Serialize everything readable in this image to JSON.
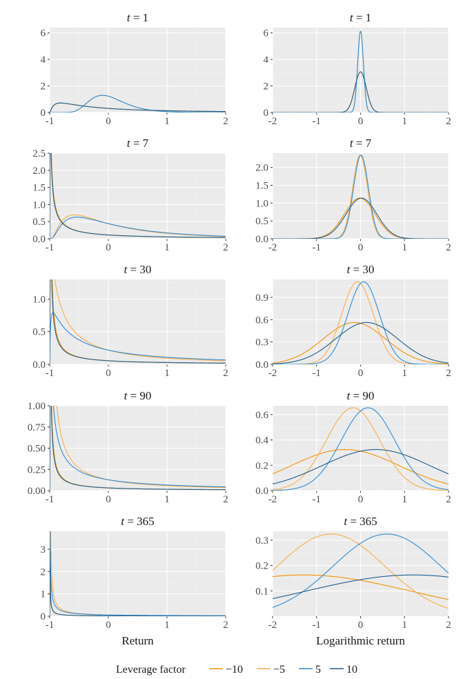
{
  "legend": {
    "title": "Leverage factor",
    "entries": [
      {
        "label": "−10",
        "color": "#f39200"
      },
      {
        "label": "−5",
        "color": "#f9ad45"
      },
      {
        "label": "5",
        "color": "#2b8cd6"
      },
      {
        "label": "10",
        "color": "#1d5c8c"
      }
    ]
  },
  "chart_data": [
    {
      "type": "line",
      "title": "t = 1",
      "t": "1",
      "xlabel": "",
      "xlim": [
        -1,
        2
      ],
      "ylim": [
        0,
        6.4
      ],
      "xticks": [
        -1,
        0,
        1,
        2
      ],
      "yticks": [
        0,
        2,
        4,
        6
      ],
      "ytick_labels": [
        "0",
        "2",
        "4",
        "6"
      ],
      "series": [
        {
          "name": "−10",
          "color": "#f39200",
          "kind": "lognormal",
          "L": -10,
          "mu": 0,
          "sigma": 0.13
        },
        {
          "name": "−5",
          "color": "#f9ad45",
          "kind": "lognormal",
          "L": -5,
          "mu": 0,
          "sigma": 0.065
        },
        {
          "name": "5",
          "color": "#2b8cd6",
          "kind": "lognormal",
          "L": 5,
          "mu": 0,
          "sigma": 0.065
        },
        {
          "name": "10",
          "color": "#1d5c8c",
          "kind": "lognormal",
          "L": 10,
          "mu": 0,
          "sigma": 0.13
        }
      ]
    },
    {
      "type": "line",
      "title": "t = 1",
      "t": "1",
      "xlabel": "",
      "xlim": [
        -2,
        2
      ],
      "ylim": [
        0,
        6.4
      ],
      "xticks": [
        -2,
        -1,
        0,
        1,
        2
      ],
      "yticks": [
        0,
        2,
        4,
        6
      ],
      "ytick_labels": [
        "0",
        "2",
        "4",
        "6"
      ],
      "series": [
        {
          "name": "−10",
          "color": "#f39200",
          "kind": "normal",
          "mu": 0,
          "sigma": 0.13
        },
        {
          "name": "−5",
          "color": "#f9ad45",
          "kind": "normal",
          "mu": 0,
          "sigma": 0.065
        },
        {
          "name": "5",
          "color": "#2b8cd6",
          "kind": "normal",
          "mu": 0,
          "sigma": 0.065
        },
        {
          "name": "10",
          "color": "#1d5c8c",
          "kind": "normal",
          "mu": 0,
          "sigma": 0.13
        }
      ]
    },
    {
      "type": "line",
      "title": "t = 7",
      "t": "7",
      "xlabel": "",
      "xlim": [
        -1,
        2
      ],
      "ylim": [
        0,
        2.5
      ],
      "xticks": [
        -1,
        0,
        1,
        2
      ],
      "yticks": [
        0,
        0.5,
        1,
        1.5,
        2,
        2.5
      ],
      "ytick_labels": [
        "0.0",
        "0.5",
        "1.0",
        "1.5",
        "2.0",
        "2.5"
      ],
      "series": [
        {
          "name": "−10",
          "color": "#f39200",
          "kind": "lognormal",
          "L": -10,
          "mu": -0.02,
          "sigma": 0.36
        },
        {
          "name": "−5",
          "color": "#f9ad45",
          "kind": "lognormal",
          "L": -5,
          "mu": -0.01,
          "sigma": 0.18
        },
        {
          "name": "5",
          "color": "#2b8cd6",
          "kind": "lognormal",
          "L": 5,
          "mu": 0.01,
          "sigma": 0.18
        },
        {
          "name": "10",
          "color": "#1d5c8c",
          "kind": "lognormal",
          "L": 10,
          "mu": 0.02,
          "sigma": 0.36
        }
      ]
    },
    {
      "type": "line",
      "title": "t = 7",
      "t": "7",
      "xlabel": "",
      "xlim": [
        -2,
        2
      ],
      "ylim": [
        0,
        2.4
      ],
      "xticks": [
        -2,
        -1,
        0,
        1,
        2
      ],
      "yticks": [
        0,
        0.5,
        1,
        1.5,
        2
      ],
      "ytick_labels": [
        "0.0",
        "0.5",
        "1.0",
        "1.5",
        "2.0"
      ],
      "series": [
        {
          "name": "−10",
          "color": "#f39200",
          "kind": "normal",
          "mu": -0.02,
          "sigma": 0.35
        },
        {
          "name": "−5",
          "color": "#f9ad45",
          "kind": "normal",
          "mu": -0.01,
          "sigma": 0.17
        },
        {
          "name": "5",
          "color": "#2b8cd6",
          "kind": "normal",
          "mu": 0.01,
          "sigma": 0.17
        },
        {
          "name": "10",
          "color": "#1d5c8c",
          "kind": "normal",
          "mu": 0.02,
          "sigma": 0.35
        }
      ]
    },
    {
      "type": "line",
      "title": "t = 30",
      "t": "30",
      "xlabel": "",
      "xlim": [
        -1,
        2
      ],
      "ylim": [
        0,
        1.3
      ],
      "xticks": [
        -1,
        0,
        1,
        2
      ],
      "yticks": [
        0,
        0.5,
        1
      ],
      "ytick_labels": [
        "0.0",
        "0.5",
        "1.0"
      ],
      "series": [
        {
          "name": "−10",
          "color": "#f39200",
          "kind": "lognormal",
          "L": -10,
          "mu": -0.14,
          "sigma": 0.71
        },
        {
          "name": "−5",
          "color": "#f9ad45",
          "kind": "lognormal",
          "L": -5,
          "mu": -0.07,
          "sigma": 0.36
        },
        {
          "name": "5",
          "color": "#2b8cd6",
          "kind": "lognormal",
          "L": 5,
          "mu": 0.07,
          "sigma": 0.36
        },
        {
          "name": "10",
          "color": "#1d5c8c",
          "kind": "lognormal",
          "L": 10,
          "mu": 0.14,
          "sigma": 0.71
        }
      ]
    },
    {
      "type": "line",
      "title": "t = 30",
      "t": "30",
      "xlabel": "",
      "xlim": [
        -2,
        2
      ],
      "ylim": [
        0,
        1.14
      ],
      "xticks": [
        -2,
        -1,
        0,
        1,
        2
      ],
      "yticks": [
        0,
        0.3,
        0.6,
        0.9
      ],
      "ytick_labels": [
        "0.0",
        "0.3",
        "0.6",
        "0.9"
      ],
      "series": [
        {
          "name": "−10",
          "color": "#f39200",
          "kind": "normal",
          "mu": -0.14,
          "sigma": 0.71
        },
        {
          "name": "−5",
          "color": "#f9ad45",
          "kind": "normal",
          "mu": -0.07,
          "sigma": 0.36
        },
        {
          "name": "5",
          "color": "#2b8cd6",
          "kind": "normal",
          "mu": 0.07,
          "sigma": 0.36
        },
        {
          "name": "10",
          "color": "#1d5c8c",
          "kind": "normal",
          "mu": 0.14,
          "sigma": 0.71
        }
      ]
    },
    {
      "type": "line",
      "title": "t = 90",
      "t": "90",
      "xlabel": "",
      "xlim": [
        -1,
        2
      ],
      "ylim": [
        0,
        1.0
      ],
      "xticks": [
        -1,
        0,
        1,
        2
      ],
      "yticks": [
        0,
        0.25,
        0.5,
        0.75,
        1
      ],
      "ytick_labels": [
        "0.00",
        "0.25",
        "0.50",
        "0.75",
        "1.00"
      ],
      "series": [
        {
          "name": "−10",
          "color": "#f39200",
          "kind": "lognormal",
          "L": -10,
          "mu": -0.35,
          "sigma": 1.2
        },
        {
          "name": "−5",
          "color": "#f9ad45",
          "kind": "lognormal",
          "L": -5,
          "mu": -0.17,
          "sigma": 0.6
        },
        {
          "name": "5",
          "color": "#2b8cd6",
          "kind": "lognormal",
          "L": 5,
          "mu": 0.17,
          "sigma": 0.6
        },
        {
          "name": "10",
          "color": "#1d5c8c",
          "kind": "lognormal",
          "L": 10,
          "mu": 0.35,
          "sigma": 1.2
        }
      ]
    },
    {
      "type": "line",
      "title": "t = 90",
      "t": "90",
      "xlabel": "",
      "xlim": [
        -2,
        2
      ],
      "ylim": [
        0,
        0.67
      ],
      "xticks": [
        -2,
        -1,
        0,
        1,
        2
      ],
      "yticks": [
        0,
        0.2,
        0.4,
        0.6
      ],
      "ytick_labels": [
        "0.0",
        "0.2",
        "0.4",
        "0.6"
      ],
      "series": [
        {
          "name": "−10",
          "color": "#f39200",
          "kind": "normal",
          "mu": -0.35,
          "sigma": 1.23
        },
        {
          "name": "−5",
          "color": "#f9ad45",
          "kind": "normal",
          "mu": -0.17,
          "sigma": 0.61
        },
        {
          "name": "5",
          "color": "#2b8cd6",
          "kind": "normal",
          "mu": 0.17,
          "sigma": 0.61
        },
        {
          "name": "10",
          "color": "#1d5c8c",
          "kind": "normal",
          "mu": 0.35,
          "sigma": 1.23
        }
      ]
    },
    {
      "type": "line",
      "title": "t = 365",
      "t": "365",
      "xlabel": "Return",
      "xlim": [
        -1,
        2
      ],
      "ylim": [
        0,
        3.8
      ],
      "xticks": [
        -1,
        0,
        1,
        2
      ],
      "yticks": [
        0,
        1,
        2,
        3
      ],
      "ytick_labels": [
        "0",
        "1",
        "2",
        "3"
      ],
      "series": [
        {
          "name": "−10",
          "color": "#f39200",
          "kind": "lognormal",
          "L": -10,
          "mu": -1.3,
          "sigma": 2.45
        },
        {
          "name": "−5",
          "color": "#f9ad45",
          "kind": "lognormal",
          "L": -5,
          "mu": -0.67,
          "sigma": 1.23
        },
        {
          "name": "5",
          "color": "#2b8cd6",
          "kind": "lognormal",
          "L": 5,
          "mu": 0.6,
          "sigma": 1.23
        },
        {
          "name": "10",
          "color": "#1d5c8c",
          "kind": "lognormal",
          "L": 10,
          "mu": 1.2,
          "sigma": 2.45
        }
      ]
    },
    {
      "type": "line",
      "title": "t = 365",
      "t": "365",
      "xlabel": "Logarithmic return",
      "xlim": [
        -2,
        2
      ],
      "ylim": [
        0,
        0.335
      ],
      "xticks": [
        -2,
        -1,
        0,
        1,
        2
      ],
      "yticks": [
        0.1,
        0.2,
        0.3
      ],
      "ytick_labels": [
        "0.1",
        "0.2",
        "0.3"
      ],
      "series": [
        {
          "name": "−10",
          "color": "#f39200",
          "kind": "normal",
          "mu": -1.3,
          "sigma": 2.45
        },
        {
          "name": "−5",
          "color": "#f9ad45",
          "kind": "normal",
          "mu": -0.67,
          "sigma": 1.23
        },
        {
          "name": "5",
          "color": "#2b8cd6",
          "kind": "normal",
          "mu": 0.6,
          "sigma": 1.23
        },
        {
          "name": "10",
          "color": "#1d5c8c",
          "kind": "normal",
          "mu": 1.2,
          "sigma": 2.45
        }
      ]
    }
  ]
}
